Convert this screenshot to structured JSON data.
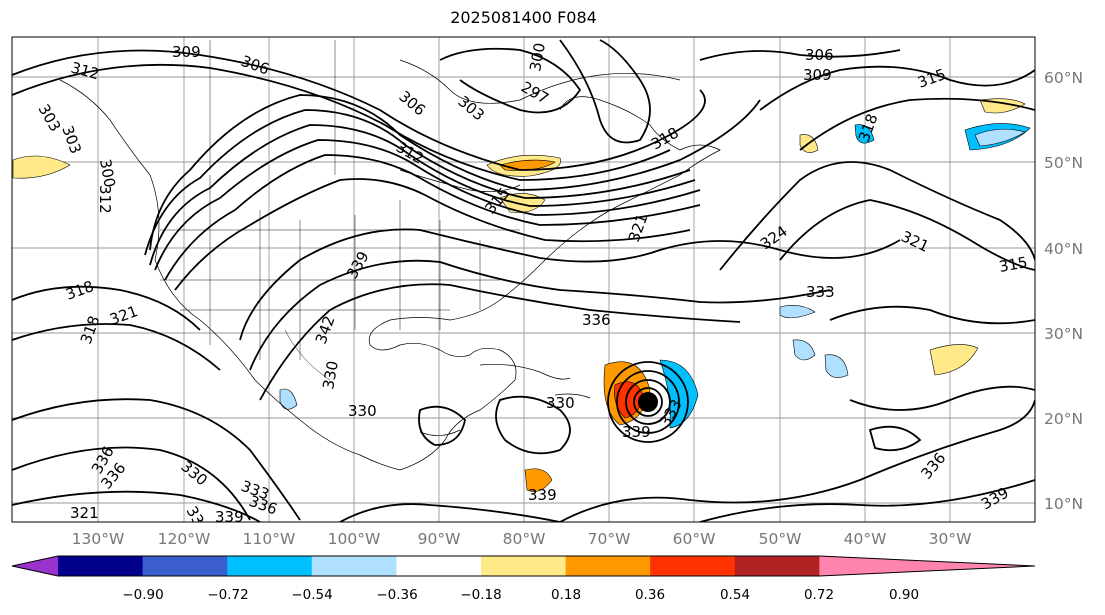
{
  "title": "2025081400 F084",
  "map": {
    "lon_labels": [
      "130°W",
      "120°W",
      "110°W",
      "100°W",
      "90°W",
      "80°W",
      "70°W",
      "60°W",
      "50°W",
      "40°W",
      "30°W"
    ],
    "lat_labels": [
      "60°N",
      "50°N",
      "40°N",
      "30°N",
      "20°N",
      "10°N"
    ],
    "contour_labels": [
      "309",
      "312",
      "306",
      "306",
      "303",
      "297",
      "300",
      "306",
      "309",
      "315",
      "318",
      "303",
      "303",
      "300",
      "312",
      "312",
      "318",
      "315",
      "321",
      "318",
      "321",
      "318",
      "324",
      "321",
      "315",
      "333",
      "336",
      "342",
      "339",
      "330",
      "330",
      "330",
      "339",
      "333",
      "336",
      "330",
      "333",
      "336",
      "339",
      "330",
      "336",
      "321",
      "336",
      "339",
      "339"
    ]
  },
  "colorbar": {
    "ticks": [
      "−0.90",
      "−0.72",
      "−0.54",
      "−0.36",
      "−0.18",
      "0.18",
      "0.36",
      "0.54",
      "0.72",
      "0.90"
    ],
    "colors": [
      "#9a32cd",
      "#00008b",
      "#3a5fcd",
      "#00bfff",
      "#b0e0ff",
      "#ffffff",
      "#ffe988",
      "#ff9900",
      "#ff3300",
      "#b22222",
      "#ff85b0"
    ]
  }
}
